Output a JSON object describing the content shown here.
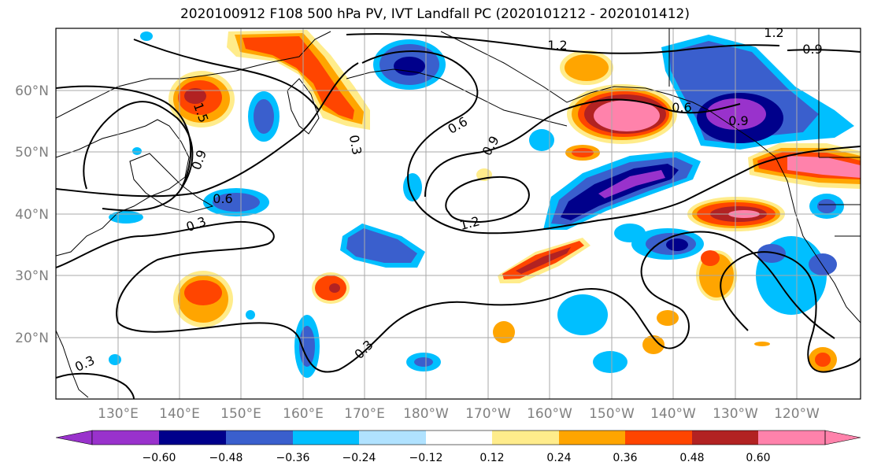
{
  "title": "2020100912 F108 500 hPa PV, IVT Landfall PC (2020101212 - 2020101412)",
  "map": {
    "lon_labels": [
      "130°E",
      "140°E",
      "150°E",
      "160°E",
      "170°E",
      "180°W",
      "170°W",
      "160°W",
      "150°W",
      "140°W",
      "130°W",
      "120°W"
    ],
    "lat_labels": [
      "60°N",
      "50°N",
      "40°N",
      "30°N",
      "20°N"
    ]
  },
  "contour_labels": [
    "1.2",
    "1.2",
    "0.9",
    "1.5",
    "0.9",
    "0.6",
    "0.3",
    "0.3",
    "0.6",
    "0.9",
    "1.2",
    "0.6",
    "0.9",
    "0.3",
    "0.3"
  ],
  "colorbar": {
    "colors": [
      "#9932cc",
      "#00008b",
      "#3a5fcd",
      "#00bfff",
      "#b0e2ff",
      "#ffffff",
      "#ffec8b",
      "#ffa500",
      "#ff4500",
      "#b22222",
      "#ff82ab"
    ],
    "tick_labels": [
      "−0.60",
      "−0.48",
      "−0.36",
      "−0.24",
      "−0.12",
      "0.12",
      "0.24",
      "0.36",
      "0.48",
      "0.60"
    ]
  }
}
